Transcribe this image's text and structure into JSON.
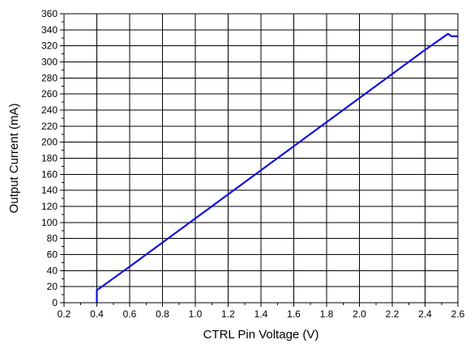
{
  "chart_data": {
    "type": "line",
    "title": "",
    "xlabel": "CTRL Pin Voltage (V)",
    "ylabel": "Output Current (mA)",
    "xlim": [
      0.2,
      2.6
    ],
    "ylim": [
      0,
      360
    ],
    "xticks": [
      "0.2",
      "0.4",
      "0.6",
      "0.8",
      "1.0",
      "1.2",
      "1.4",
      "1.6",
      "1.8",
      "2.0",
      "2.2",
      "2.4",
      "2.6"
    ],
    "yticks": [
      "0",
      "20",
      "40",
      "60",
      "80",
      "100",
      "120",
      "140",
      "160",
      "180",
      "200",
      "220",
      "240",
      "260",
      "280",
      "300",
      "320",
      "340",
      "360"
    ],
    "grid": true,
    "line_color": "#1010e0",
    "series": [
      {
        "x": [
          0.4,
          0.4,
          0.41,
          0.6,
          0.8,
          1.0,
          1.2,
          1.4,
          1.6,
          1.8,
          2.0,
          2.2,
          2.4,
          2.54,
          2.56,
          2.6
        ],
        "y": [
          0,
          16,
          17,
          45,
          75,
          105,
          135,
          165,
          195,
          225,
          255,
          285,
          315,
          335,
          332,
          332
        ]
      }
    ]
  }
}
